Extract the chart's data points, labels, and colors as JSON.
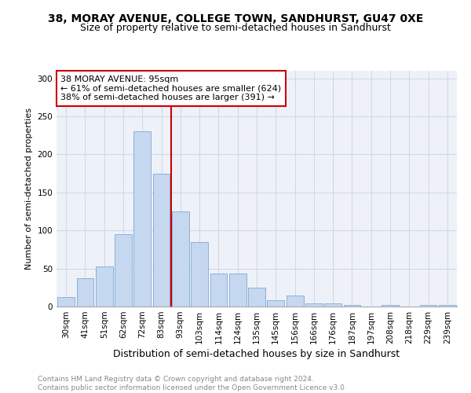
{
  "title1": "38, MORAY AVENUE, COLLEGE TOWN, SANDHURST, GU47 0XE",
  "title2": "Size of property relative to semi-detached houses in Sandhurst",
  "xlabel": "Distribution of semi-detached houses by size in Sandhurst",
  "ylabel": "Number of semi-detached properties",
  "footnote": "Contains HM Land Registry data © Crown copyright and database right 2024.\nContains public sector information licensed under the Open Government Licence v3.0.",
  "categories": [
    "30sqm",
    "41sqm",
    "51sqm",
    "62sqm",
    "72sqm",
    "83sqm",
    "93sqm",
    "103sqm",
    "114sqm",
    "124sqm",
    "135sqm",
    "145sqm",
    "156sqm",
    "166sqm",
    "176sqm",
    "187sqm",
    "197sqm",
    "208sqm",
    "218sqm",
    "229sqm",
    "239sqm"
  ],
  "values": [
    12,
    37,
    53,
    95,
    230,
    175,
    125,
    85,
    43,
    43,
    25,
    8,
    14,
    4,
    4,
    2,
    0,
    2,
    0,
    2,
    2
  ],
  "bar_color": "#c5d8f0",
  "bar_edge_color": "#8ab0d8",
  "bar_linewidth": 0.7,
  "grid_color": "#d0d8e8",
  "property_line_x": 5.5,
  "property_line_color": "#cc0000",
  "annotation_text": "38 MORAY AVENUE: 95sqm\n← 61% of semi-detached houses are smaller (624)\n38% of semi-detached houses are larger (391) →",
  "annotation_box_color": "#ffffff",
  "annotation_box_edge": "#cc0000",
  "ylim": [
    0,
    310
  ],
  "yticks": [
    0,
    50,
    100,
    150,
    200,
    250,
    300
  ],
  "title1_fontsize": 10,
  "title2_fontsize": 9,
  "xlabel_fontsize": 9,
  "ylabel_fontsize": 8,
  "tick_fontsize": 7.5,
  "annotation_fontsize": 8,
  "footnote_fontsize": 6.5,
  "bg_color": "#eef2f8"
}
